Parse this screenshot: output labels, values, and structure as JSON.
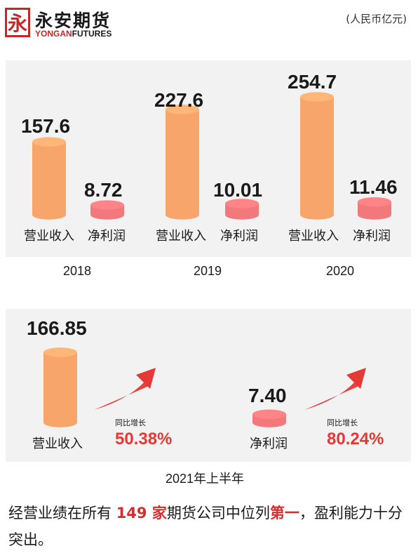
{
  "brand": {
    "logo_mark": "永",
    "name_cn": "永安期货",
    "name_en_part1": "YONGAN",
    "name_en_part2": "FUTURES",
    "accent_color": "#c62828"
  },
  "unit_note": "(人民币亿元)",
  "colors": {
    "revenue": "#f7a56b",
    "profit": "#f2787b",
    "highlight": "#e53935"
  },
  "chart_data": [
    {
      "type": "bar",
      "categories": [
        "2018",
        "2019",
        "2020"
      ],
      "series": [
        {
          "name": "营业收入",
          "values": [
            157.6,
            227.6,
            254.7
          ]
        },
        {
          "name": "净利润",
          "values": [
            8.72,
            10.01,
            11.46
          ]
        }
      ],
      "value_labels": {
        "revenue": [
          "157.6",
          "227.6",
          "254.7"
        ],
        "profit": [
          "8.72",
          "10.01",
          "11.46"
        ]
      }
    },
    {
      "type": "bar",
      "title": "2021年上半年",
      "categories": [
        "营业收入",
        "净利润"
      ],
      "values": [
        166.85,
        7.4
      ],
      "value_labels": [
        "166.85",
        "7.40"
      ],
      "growth_label": "同比增长",
      "growth": [
        "50.38%",
        "80.24%"
      ]
    }
  ],
  "footer": {
    "part1": "经营业绩在所有 ",
    "hl1": "149 家",
    "part2": "期货公司中位列",
    "hl2": "第一",
    "part3": "，盈利能力十分突出。"
  }
}
